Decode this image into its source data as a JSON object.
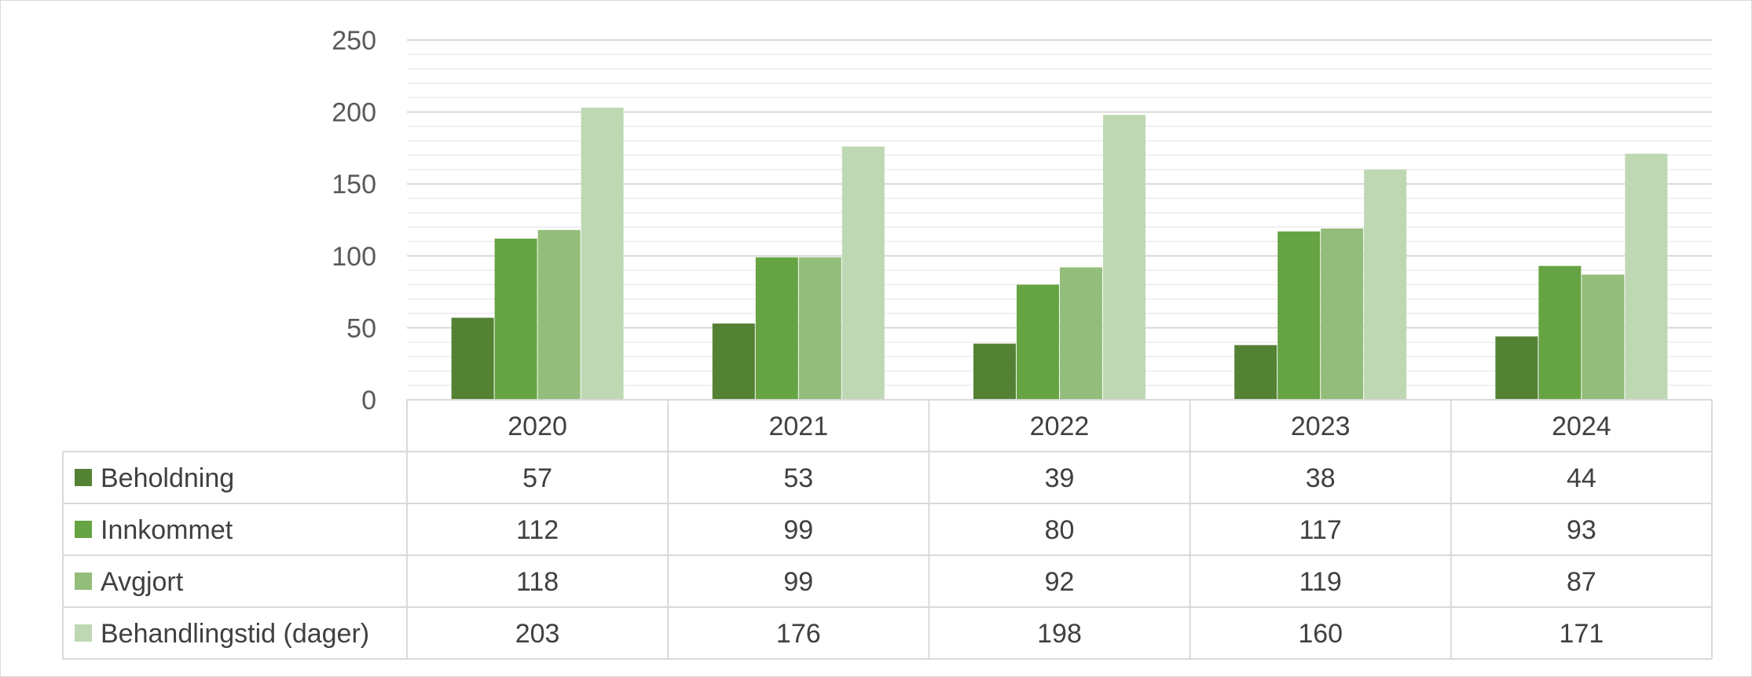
{
  "chart_data": {
    "type": "bar",
    "categories": [
      "2020",
      "2021",
      "2022",
      "2023",
      "2024"
    ],
    "series": [
      {
        "name": "Beholdning",
        "values": [
          57,
          53,
          39,
          38,
          44
        ],
        "color": "#548235"
      },
      {
        "name": "Innkommet",
        "values": [
          112,
          99,
          80,
          117,
          93
        ],
        "color": "#66a343"
      },
      {
        "name": "Avgjort",
        "values": [
          118,
          99,
          92,
          119,
          87
        ],
        "color": "#92bd7a"
      },
      {
        "name": "Behandlingstid (dager)",
        "values": [
          203,
          176,
          198,
          160,
          171
        ],
        "color": "#bfd8b4"
      }
    ],
    "ylim": [
      0,
      250
    ],
    "yticks": [
      0,
      50,
      100,
      150,
      200,
      250
    ],
    "grid": true,
    "legend": "data-table",
    "title": "",
    "xlabel": "",
    "ylabel": ""
  }
}
